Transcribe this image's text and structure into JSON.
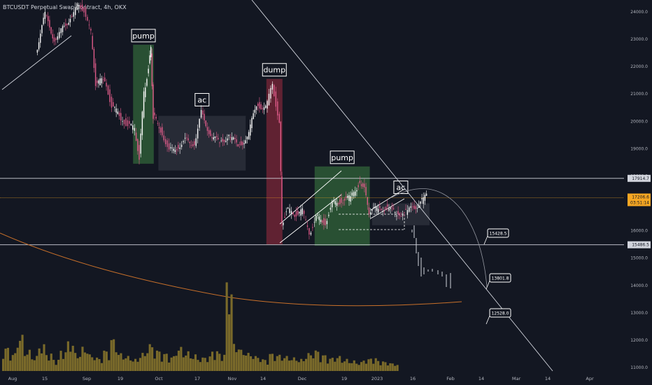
{
  "header": {
    "symbol": "BTCUSDT Perpetual Swap Contract, 4h, OKX"
  },
  "colors": {
    "background": "#131722",
    "candle_up": "#ffffff",
    "candle_down": "#e05b8a",
    "volume": "#7a6a2a",
    "trendline": "#d1d4dc",
    "orange_curve": "#c8702a",
    "current_price": "#f5a623",
    "pump_zone": "#2e5b36",
    "dump_zone": "#6e2535",
    "ac_zone": "#2a2e39"
  },
  "chart_data": {
    "type": "candlestick",
    "ylim": [
      11000,
      24400
    ],
    "y_ticks": [
      "24000.0",
      "23000.0",
      "22000.0",
      "21000.0",
      "20000.0",
      "19000.0",
      "18000.0",
      "17000.0",
      "16000.0",
      "15000.0",
      "14000.0",
      "13000.0",
      "12000.0",
      "11000.0"
    ],
    "x_ticks": [
      "Aug",
      "15",
      "Sep",
      "19",
      "Oct",
      "17",
      "Nov",
      "14",
      "Dec",
      "19",
      "2023",
      "16",
      "Feb",
      "14",
      "Mar",
      "14",
      "Apr"
    ],
    "horizontal_lines": [
      {
        "label": "17914.7",
        "value": 17914.7
      },
      {
        "label": "15486.5",
        "value": 15486.5
      }
    ],
    "current_price": {
      "value": "17206.6",
      "countdown": "03:51:14"
    },
    "zones": [
      {
        "label": "pump",
        "kind": "pump",
        "from": "Sep 5",
        "to": "Sep 14",
        "low": 18450,
        "high": 22800
      },
      {
        "label": "ac",
        "kind": "ac",
        "from": "Sep 16",
        "to": "Oct 24",
        "low": 18200,
        "high": 20200
      },
      {
        "label": "dump",
        "kind": "dump",
        "from": "Nov 2",
        "to": "Nov 9",
        "low": 15500,
        "high": 21550
      },
      {
        "label": "pump",
        "kind": "pump",
        "from": "Nov 23",
        "to": "Dec 17",
        "low": 15450,
        "high": 18350
      },
      {
        "label": "ac",
        "kind": "ac",
        "from": "Dec 18",
        "to": "Jan 12",
        "low": 16200,
        "high": 17000
      }
    ],
    "projection_labels": [
      "15428.5",
      "13801.8",
      "12528.0"
    ],
    "series": [
      {
        "name": "BTCUSDT",
        "points": [
          [
            "Jul 25",
            22500
          ],
          [
            "Jul 29",
            23900
          ],
          [
            "Aug 2",
            23000
          ],
          [
            "Aug 5",
            23300
          ],
          [
            "Aug 9",
            23800
          ],
          [
            "Aug 12",
            24200
          ],
          [
            "Aug 15",
            24100
          ],
          [
            "Aug 18",
            23200
          ],
          [
            "Aug 20",
            21400
          ],
          [
            "Aug 24",
            21500
          ],
          [
            "Aug 27",
            20600
          ],
          [
            "Aug 31",
            20100
          ],
          [
            "Sep 3",
            19900
          ],
          [
            "Sep 6",
            19700
          ],
          [
            "Sep 8",
            18700
          ],
          [
            "Sep 10",
            21000
          ],
          [
            "Sep 12",
            22000
          ],
          [
            "Sep 13",
            22600
          ],
          [
            "Sep 14",
            20200
          ],
          [
            "Sep 18",
            19600
          ],
          [
            "Sep 21",
            18900
          ],
          [
            "Sep 25",
            19100
          ],
          [
            "Sep 28",
            19300
          ],
          [
            "Oct 2",
            19200
          ],
          [
            "Oct 5",
            20300
          ],
          [
            "Oct 9",
            19500
          ],
          [
            "Oct 13",
            19200
          ],
          [
            "Oct 17",
            19500
          ],
          [
            "Oct 21",
            19100
          ],
          [
            "Oct 25",
            19400
          ],
          [
            "Oct 29",
            20600
          ],
          [
            "Nov 2",
            20500
          ],
          [
            "Nov 5",
            21300
          ],
          [
            "Nov 8",
            20000
          ],
          [
            "Nov 9",
            16200
          ],
          [
            "Nov 11",
            16800
          ],
          [
            "Nov 14",
            16600
          ],
          [
            "Nov 18",
            16700
          ],
          [
            "Nov 21",
            15900
          ],
          [
            "Nov 24",
            16500
          ],
          [
            "Nov 28",
            16300
          ],
          [
            "Dec 1",
            17000
          ],
          [
            "Dec 5",
            17100
          ],
          [
            "Dec 9",
            17200
          ],
          [
            "Dec 13",
            17800
          ],
          [
            "Dec 15",
            17500
          ],
          [
            "Dec 17",
            16700
          ],
          [
            "Dec 21",
            16800
          ],
          [
            "Dec 25",
            16850
          ],
          [
            "Dec 29",
            16600
          ],
          [
            "Jan 2",
            16700
          ],
          [
            "Jan 5",
            16800
          ],
          [
            "Jan 9",
            17100
          ],
          [
            "Jan 11",
            17250
          ]
        ]
      }
    ],
    "volume": [
      80,
      60,
      120,
      70,
      50,
      90,
      60,
      40,
      70,
      100,
      60,
      80,
      55,
      45,
      70,
      110,
      60,
      50,
      40,
      60,
      90,
      70,
      60,
      50,
      80,
      65,
      55,
      45,
      50,
      70,
      60,
      300,
      90,
      70,
      60,
      50,
      40,
      60,
      55,
      50,
      45,
      40,
      60,
      70,
      55,
      45,
      50,
      40,
      35,
      30,
      40,
      45,
      35,
      30,
      25
    ]
  }
}
